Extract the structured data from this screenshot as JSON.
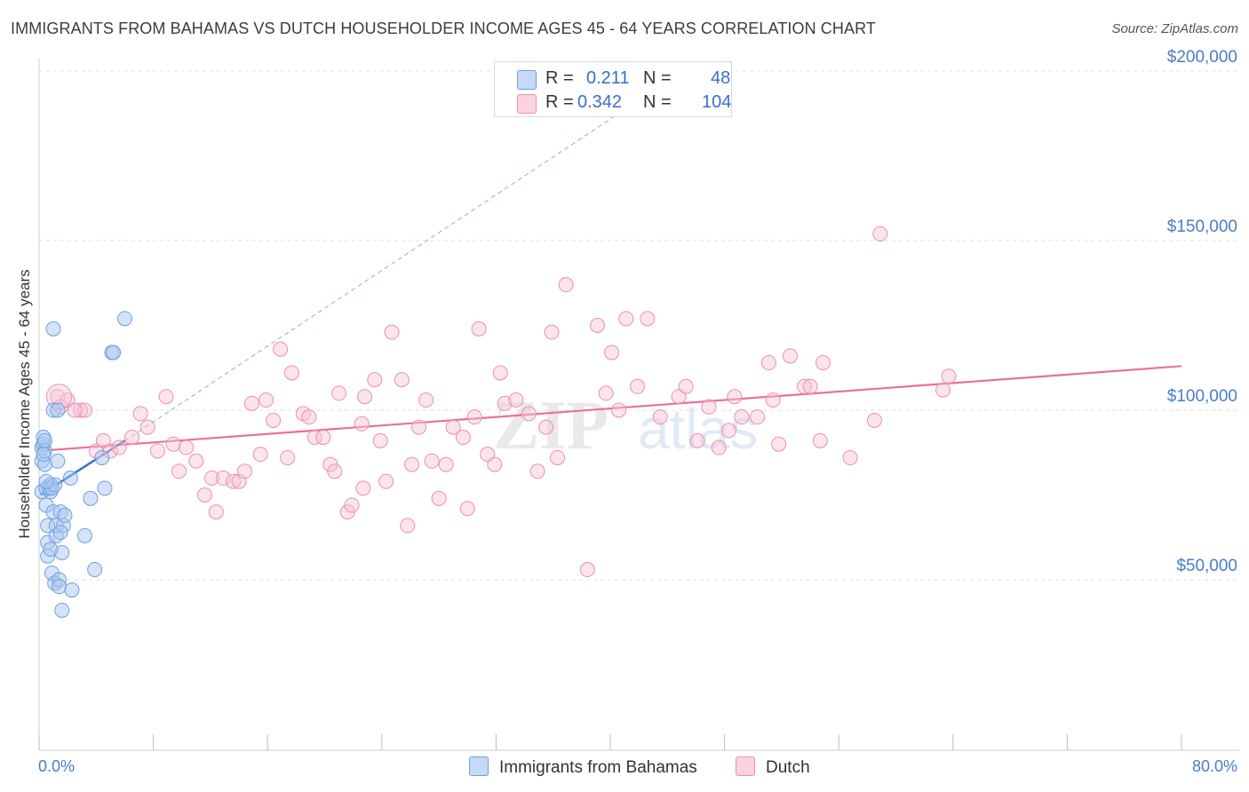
{
  "title": "IMMIGRANTS FROM BAHAMAS VS DUTCH HOUSEHOLDER INCOME AGES 45 - 64 YEARS CORRELATION CHART",
  "source": "Source: ZipAtlas.com",
  "watermark": "ZIPatlas",
  "legend": {
    "rows": [
      {
        "r_label": "R =",
        "r_value": "0.211",
        "n_label": "N =",
        "n_value": "48",
        "color": "#a9c8f0",
        "border": "#6fa0e0"
      },
      {
        "r_label": "R =",
        "r_value": "0.342",
        "n_label": "N =",
        "n_value": "104",
        "color": "#f8c4d4",
        "border": "#ec8fae"
      }
    ]
  },
  "bottom_legend": [
    {
      "label": "Immigrants from Bahamas",
      "color": "#c5daf5",
      "border": "#6fa0e0"
    },
    {
      "label": "Dutch",
      "color": "#fbd3df",
      "border": "#ec8fae"
    }
  ],
  "chart_data": {
    "type": "scatter",
    "ylabel": "Householder Income Ages 45 - 64 years",
    "xlim": [
      0,
      80
    ],
    "ylim": [
      10000,
      215000
    ],
    "x_tick_labels": [
      {
        "value": 0,
        "label": "0.0%"
      },
      {
        "value": 80,
        "label": "80.0%"
      }
    ],
    "y_tick_labels": [
      {
        "value": 50000,
        "label": "$50,000"
      },
      {
        "value": 100000,
        "label": "$100,000"
      },
      {
        "value": 150000,
        "label": "$150,000"
      },
      {
        "value": 200000,
        "label": "$200,000"
      }
    ],
    "grid": "horizontal dashed",
    "legend_position": "top-center",
    "series": [
      {
        "name": "Immigrants from Bahamas",
        "color": "#6fa0e0",
        "fill": "#a9c8f0",
        "trend": {
          "x0": 0.1,
          "y0": 75000,
          "x1": 6,
          "y1": 91000,
          "extend_x1": 41.5,
          "extend_y1": 190000
        },
        "points": [
          [
            0.2,
            89000
          ],
          [
            0.2,
            85000
          ],
          [
            0.2,
            76000
          ],
          [
            0.3,
            90000
          ],
          [
            0.3,
            92000
          ],
          [
            0.4,
            88000
          ],
          [
            0.4,
            84000
          ],
          [
            0.5,
            77000
          ],
          [
            0.5,
            72000
          ],
          [
            0.6,
            66000
          ],
          [
            0.6,
            61000
          ],
          [
            0.6,
            57000
          ],
          [
            0.8,
            76000
          ],
          [
            0.8,
            78000
          ],
          [
            0.9,
            52000
          ],
          [
            1.0,
            124000
          ],
          [
            1.0,
            100000
          ],
          [
            1.0,
            70000
          ],
          [
            1.1,
            49000
          ],
          [
            1.2,
            63000
          ],
          [
            1.2,
            66000
          ],
          [
            1.3,
            100000
          ],
          [
            1.3,
            85000
          ],
          [
            1.4,
            50000
          ],
          [
            1.4,
            48000
          ],
          [
            1.5,
            70000
          ],
          [
            1.6,
            58000
          ],
          [
            1.6,
            41000
          ],
          [
            1.7,
            66000
          ],
          [
            1.8,
            69000
          ],
          [
            2.2,
            80000
          ],
          [
            2.3,
            47000
          ],
          [
            3.2,
            63000
          ],
          [
            3.6,
            74000
          ],
          [
            3.9,
            53000
          ],
          [
            4.4,
            86000
          ],
          [
            4.6,
            77000
          ],
          [
            5.1,
            117000
          ],
          [
            5.2,
            117000
          ],
          [
            6.0,
            127000
          ],
          [
            0.7,
            77000
          ],
          [
            0.9,
            77000
          ],
          [
            0.4,
            91000
          ],
          [
            0.3,
            87000
          ],
          [
            1.1,
            78000
          ],
          [
            0.5,
            79000
          ],
          [
            1.5,
            64000
          ],
          [
            0.8,
            59000
          ]
        ]
      },
      {
        "name": "Dutch",
        "color": "#ec8fae",
        "fill": "#f8c4d4",
        "trend": {
          "x0": 0,
          "y0": 88000,
          "x1": 80,
          "y1": 113000
        },
        "points": [
          [
            1.3,
            104000
          ],
          [
            1.5,
            101000
          ],
          [
            2.0,
            103000
          ],
          [
            2.9,
            100000
          ],
          [
            3.2,
            100000
          ],
          [
            4.0,
            88000
          ],
          [
            4.5,
            91000
          ],
          [
            5.0,
            88000
          ],
          [
            5.6,
            89000
          ],
          [
            6.5,
            92000
          ],
          [
            7.1,
            99000
          ],
          [
            7.6,
            95000
          ],
          [
            8.3,
            88000
          ],
          [
            8.9,
            104000
          ],
          [
            9.4,
            90000
          ],
          [
            9.8,
            82000
          ],
          [
            10.3,
            89000
          ],
          [
            11.0,
            85000
          ],
          [
            11.6,
            75000
          ],
          [
            12.1,
            80000
          ],
          [
            12.4,
            70000
          ],
          [
            12.9,
            80000
          ],
          [
            13.6,
            79000
          ],
          [
            14.0,
            79000
          ],
          [
            14.4,
            82000
          ],
          [
            14.9,
            102000
          ],
          [
            15.5,
            87000
          ],
          [
            15.9,
            103000
          ],
          [
            16.4,
            97000
          ],
          [
            16.9,
            118000
          ],
          [
            17.4,
            86000
          ],
          [
            17.7,
            111000
          ],
          [
            18.5,
            99000
          ],
          [
            18.9,
            98000
          ],
          [
            19.3,
            92000
          ],
          [
            19.9,
            92000
          ],
          [
            20.4,
            84000
          ],
          [
            20.7,
            82000
          ],
          [
            21.0,
            105000
          ],
          [
            21.6,
            70000
          ],
          [
            21.9,
            72000
          ],
          [
            22.6,
            96000
          ],
          [
            22.8,
            104000
          ],
          [
            23.5,
            109000
          ],
          [
            23.9,
            91000
          ],
          [
            24.3,
            79000
          ],
          [
            24.7,
            123000
          ],
          [
            25.4,
            109000
          ],
          [
            25.8,
            66000
          ],
          [
            26.1,
            84000
          ],
          [
            26.6,
            95000
          ],
          [
            27.1,
            103000
          ],
          [
            27.5,
            85000
          ],
          [
            28.0,
            74000
          ],
          [
            28.5,
            84000
          ],
          [
            29.0,
            95000
          ],
          [
            29.7,
            92000
          ],
          [
            30.0,
            71000
          ],
          [
            30.5,
            98000
          ],
          [
            30.8,
            124000
          ],
          [
            31.4,
            87000
          ],
          [
            31.9,
            84000
          ],
          [
            32.3,
            111000
          ],
          [
            32.6,
            102000
          ],
          [
            33.4,
            103000
          ],
          [
            34.3,
            99000
          ],
          [
            34.9,
            82000
          ],
          [
            35.5,
            95000
          ],
          [
            35.9,
            123000
          ],
          [
            36.3,
            86000
          ],
          [
            36.9,
            137000
          ],
          [
            38.4,
            53000
          ],
          [
            39.1,
            125000
          ],
          [
            39.7,
            105000
          ],
          [
            40.1,
            117000
          ],
          [
            40.6,
            100000
          ],
          [
            41.1,
            127000
          ],
          [
            41.9,
            107000
          ],
          [
            42.6,
            127000
          ],
          [
            43.5,
            98000
          ],
          [
            44.8,
            104000
          ],
          [
            45.3,
            107000
          ],
          [
            46.1,
            91000
          ],
          [
            46.9,
            101000
          ],
          [
            47.6,
            89000
          ],
          [
            48.3,
            94000
          ],
          [
            48.7,
            104000
          ],
          [
            49.2,
            98000
          ],
          [
            50.3,
            98000
          ],
          [
            51.1,
            114000
          ],
          [
            51.4,
            103000
          ],
          [
            51.8,
            90000
          ],
          [
            52.6,
            116000
          ],
          [
            53.6,
            107000
          ],
          [
            54.0,
            107000
          ],
          [
            54.7,
            91000
          ],
          [
            54.9,
            114000
          ],
          [
            56.8,
            86000
          ],
          [
            58.5,
            97000
          ],
          [
            58.9,
            152000
          ],
          [
            63.3,
            106000
          ],
          [
            63.7,
            110000
          ],
          [
            22.7,
            77000
          ],
          [
            2.5,
            100000
          ]
        ]
      }
    ]
  }
}
